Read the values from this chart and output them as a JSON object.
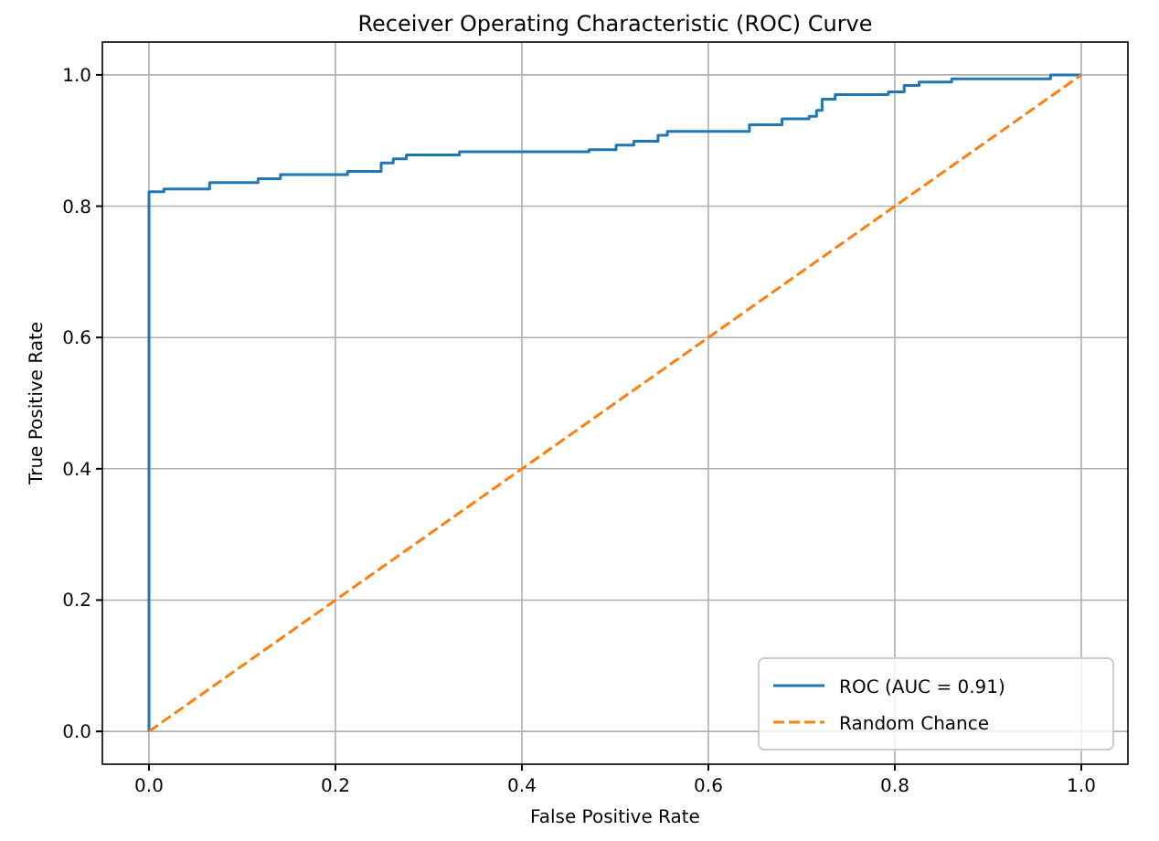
{
  "chart_data": {
    "type": "line",
    "title": "Receiver Operating Characteristic (ROC) Curve",
    "xlabel": "False Positive Rate",
    "ylabel": "True Positive Rate",
    "xlim": [
      -0.05,
      1.05
    ],
    "ylim": [
      -0.05,
      1.05
    ],
    "xticks": [
      {
        "value": 0,
        "label": "0.0"
      },
      {
        "value": 0.2,
        "label": "0.2"
      },
      {
        "value": 0.4,
        "label": "0.4"
      },
      {
        "value": 0.6,
        "label": "0.6"
      },
      {
        "value": 0.8,
        "label": "0.8"
      },
      {
        "value": 1,
        "label": "1.0"
      }
    ],
    "yticks": [
      {
        "value": 0,
        "label": "0.0"
      },
      {
        "value": 0.2,
        "label": "0.2"
      },
      {
        "value": 0.4,
        "label": "0.4"
      },
      {
        "value": 0.6,
        "label": "0.6"
      },
      {
        "value": 0.8,
        "label": "0.8"
      },
      {
        "value": 1,
        "label": "1.0"
      }
    ],
    "grid": true,
    "legend": "bottom right",
    "series": [
      {
        "name": "ROC (AUC = 0.91)",
        "type": "step",
        "color": "#1f77b4",
        "line_style": "solid",
        "x": [
          0,
          0,
          0.016,
          0.065,
          0.117,
          0.141,
          0.213,
          0.249,
          0.262,
          0.276,
          0.333,
          0.472,
          0.501,
          0.52,
          0.546,
          0.556,
          0.644,
          0.679,
          0.708,
          0.716,
          0.722,
          0.736,
          0.793,
          0.81,
          0.826,
          0.861,
          0.967,
          1.0
        ],
        "values": [
          0,
          0.822,
          0.826,
          0.836,
          0.842,
          0.848,
          0.853,
          0.866,
          0.872,
          0.878,
          0.883,
          0.886,
          0.893,
          0.899,
          0.908,
          0.914,
          0.924,
          0.933,
          0.937,
          0.946,
          0.963,
          0.97,
          0.974,
          0.984,
          0.989,
          0.994,
          1.0,
          1.0
        ]
      },
      {
        "name": "Random Chance",
        "color": "#ff7f0e",
        "line_style": "dashed",
        "x": [
          0,
          1
        ],
        "values": [
          0,
          1
        ]
      }
    ]
  }
}
